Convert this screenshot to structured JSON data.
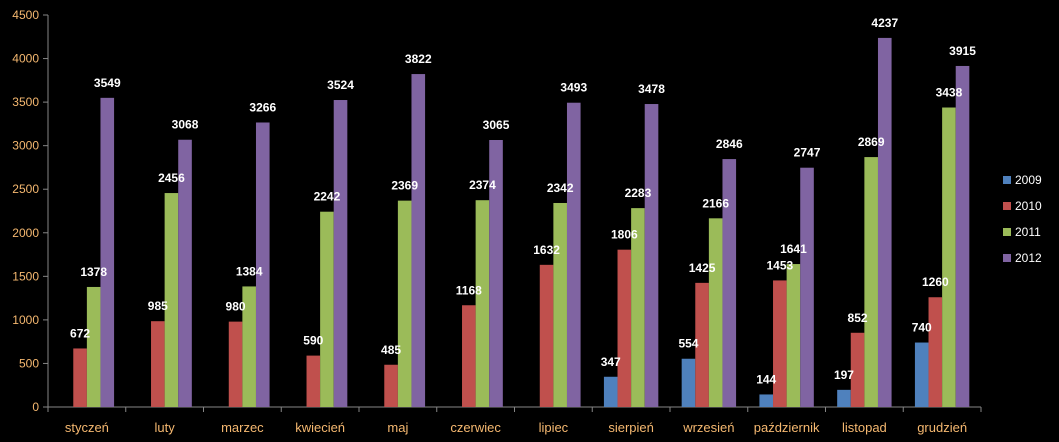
{
  "chart_data": {
    "type": "bar",
    "title": "",
    "xlabel": "",
    "ylabel": "",
    "ylim": [
      0,
      4500
    ],
    "ytick_step": 500,
    "grid": false,
    "legend_position": "right",
    "categories": [
      "styczeń",
      "luty",
      "marzec",
      "kwiecień",
      "maj",
      "czerwiec",
      "lipiec",
      "sierpień",
      "wrzesień",
      "październik",
      "listopad",
      "grudzień"
    ],
    "series": [
      {
        "name": "2009",
        "color": "#4f81bd",
        "values": [
          null,
          null,
          null,
          null,
          null,
          null,
          null,
          347,
          554,
          144,
          197,
          740
        ]
      },
      {
        "name": "2010",
        "color": "#c0504d",
        "values": [
          672,
          985,
          980,
          590,
          485,
          1168,
          1632,
          1806,
          1425,
          1453,
          852,
          1260
        ]
      },
      {
        "name": "2011",
        "color": "#9bbb59",
        "values": [
          1378,
          2456,
          1384,
          2242,
          2369,
          2374,
          2342,
          2283,
          2166,
          1641,
          2869,
          3438
        ]
      },
      {
        "name": "2012",
        "color": "#8064a2",
        "values": [
          3549,
          3068,
          3266,
          3524,
          3822,
          3065,
          3493,
          3478,
          2846,
          2747,
          4237,
          3915
        ]
      }
    ],
    "axis_color": "#868686",
    "tick_label_color": "#f5b870"
  }
}
